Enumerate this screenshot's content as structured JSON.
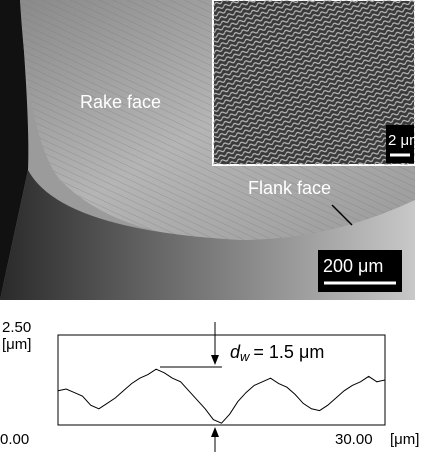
{
  "figure": {
    "photo_labels": {
      "rake_face": "Rake face",
      "flank_face": "Flank face",
      "scale_main": "200 μm",
      "scale_inset": "2 μm"
    },
    "annotation": {
      "symbol": "d",
      "subscript": "w",
      "text": "= 1.5 μm"
    }
  },
  "chart_data": {
    "type": "line",
    "x": [
      0,
      0.75,
      1.5,
      2.25,
      3,
      3.75,
      4.5,
      5.25,
      6,
      6.75,
      7.5,
      8.25,
      9,
      9.75,
      10.5,
      11.25,
      12,
      12.75,
      13.5,
      14.25,
      15,
      15.75,
      16.5,
      17.25,
      18,
      18.75,
      19.5,
      20.25,
      21,
      21.75,
      22.5,
      23.25,
      24,
      24.75,
      25.5,
      26.25,
      27,
      27.75,
      28.5,
      29.25,
      30
    ],
    "series": [
      {
        "color": "#000000",
        "values": [
          0.95,
          1.0,
          0.9,
          0.8,
          0.55,
          0.45,
          0.6,
          0.75,
          0.95,
          1.15,
          1.3,
          1.4,
          1.55,
          1.45,
          1.3,
          1.2,
          0.95,
          0.7,
          0.45,
          0.15,
          0.05,
          0.3,
          0.65,
          0.9,
          1.1,
          1.2,
          1.3,
          1.15,
          1.05,
          0.85,
          0.6,
          0.45,
          0.4,
          0.55,
          0.75,
          0.95,
          1.1,
          1.2,
          1.35,
          1.2,
          1.25
        ]
      }
    ],
    "xlim": [
      0,
      30
    ],
    "ylim": [
      0,
      2.5
    ],
    "xticks": [
      {
        "value": 0,
        "label": "0.00"
      },
      {
        "value": 30,
        "label": "30.00"
      }
    ],
    "yticks": [
      {
        "value": 2.5,
        "label": "2.50"
      }
    ],
    "x_unit": "[μm]",
    "y_unit": "[μm]"
  }
}
